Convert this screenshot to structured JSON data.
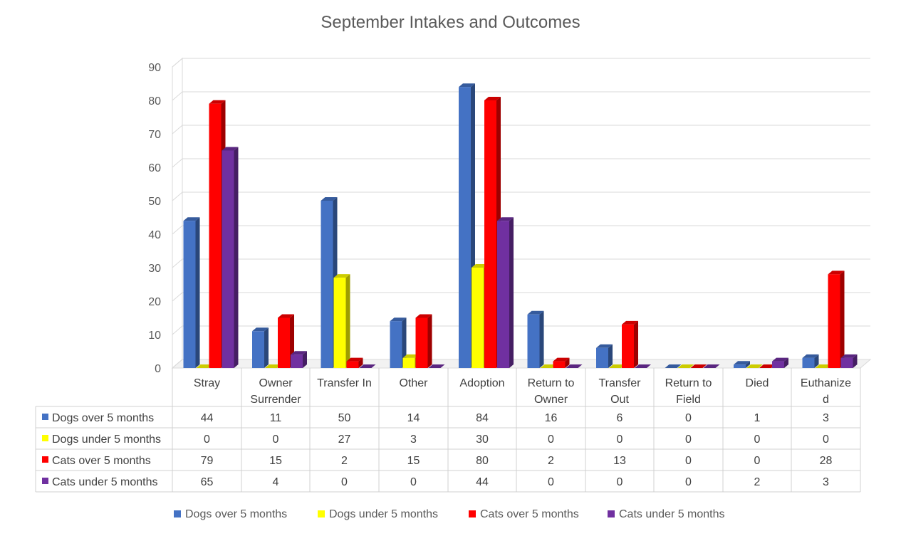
{
  "chart_data": {
    "type": "bar",
    "title": "September Intakes and Outcomes",
    "categories": [
      [
        "Stray"
      ],
      [
        "Owner",
        "Surrender"
      ],
      [
        "Transfer In"
      ],
      [
        "Other"
      ],
      [
        "Adoption"
      ],
      [
        "Return to",
        "Owner"
      ],
      [
        "Transfer",
        "Out"
      ],
      [
        "Return to",
        "Field"
      ],
      [
        "Died"
      ],
      [
        "Euthanize",
        "d"
      ]
    ],
    "series": [
      {
        "name": "Dogs over 5 months",
        "color": "#4472C4",
        "values": [
          44,
          11,
          50,
          14,
          84,
          16,
          6,
          0,
          1,
          3
        ]
      },
      {
        "name": "Dogs under 5 months",
        "color": "#FFFF00",
        "values": [
          0,
          0,
          27,
          3,
          30,
          0,
          0,
          0,
          0,
          0
        ]
      },
      {
        "name": "Cats over 5 months",
        "color": "#FF0000",
        "values": [
          79,
          15,
          2,
          15,
          80,
          2,
          13,
          0,
          0,
          28
        ]
      },
      {
        "name": "Cats under 5 months",
        "color": "#7030A0",
        "values": [
          65,
          4,
          0,
          0,
          44,
          0,
          0,
          0,
          2,
          3
        ]
      }
    ],
    "ylim": [
      0,
      90
    ],
    "yticks": [
      0,
      10,
      20,
      30,
      40,
      50,
      60,
      70,
      80,
      90
    ],
    "grid": true,
    "legend": "bottom",
    "data_table": true
  }
}
